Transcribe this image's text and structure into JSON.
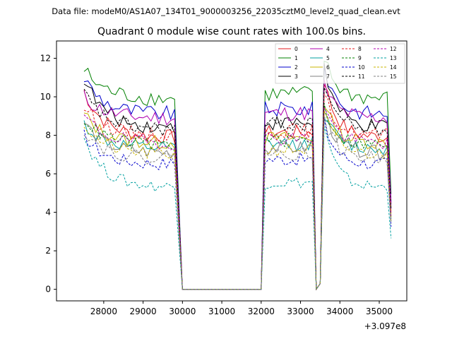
{
  "header": {
    "data_file": "Data file: modeM0/AS1A07_134T01_9000003256_22035cztM0_level2_quad_clean.evt"
  },
  "chart_data": {
    "type": "line",
    "title": "Quadrant 0 module wise count rates with 100.0s bins.",
    "xlabel": "",
    "ylabel": "",
    "x_offset_label": "+3.097e8",
    "x_offset": 309700000,
    "xlim": [
      26800,
      35700
    ],
    "ylim": [
      -0.6,
      12.9
    ],
    "x_ticks": [
      28000,
      29000,
      30000,
      31000,
      32000,
      33000,
      34000,
      35000
    ],
    "x_tick_labels": [
      "28000",
      "29000",
      "30000",
      "31000",
      "32000",
      "33000",
      "34000",
      "35000"
    ],
    "y_ticks": [
      0,
      2,
      4,
      6,
      8,
      10,
      12
    ],
    "y_tick_labels": [
      "0",
      "2",
      "4",
      "6",
      "8",
      "10",
      "12"
    ],
    "grid": false,
    "legend_position": "top-right",
    "segments": {
      "seg1_x_start": 27500,
      "seg1_x_end": 29800,
      "drop_x": 30000,
      "flat_x_end": 32000,
      "seg2_x_start": 32100,
      "seg2_x_end": 33300,
      "dip_x": [
        33400,
        33500
      ],
      "seg3_x_start": 33600,
      "seg3_x_end": 35200,
      "end_x": 35300
    },
    "series": [
      {
        "name": "0",
        "color": "#e41a1c",
        "dashed": false,
        "level": 7.9,
        "start": 10.3
      },
      {
        "name": "1",
        "color": "#008000",
        "dashed": false,
        "level": 9.9,
        "start": 11.4
      },
      {
        "name": "2",
        "color": "#0000cc",
        "dashed": false,
        "level": 9.1,
        "start": 11.0
      },
      {
        "name": "3",
        "color": "#000000",
        "dashed": false,
        "level": 8.4,
        "start": 11.0
      },
      {
        "name": "4",
        "color": "#b000b0",
        "dashed": false,
        "level": 8.9,
        "start": 10.0
      },
      {
        "name": "5",
        "color": "#00a0a0",
        "dashed": false,
        "level": 7.3,
        "start": 8.6
      },
      {
        "name": "6",
        "color": "#c8b400",
        "dashed": false,
        "level": 7.6,
        "start": 9.1
      },
      {
        "name": "7",
        "color": "#808080",
        "dashed": false,
        "level": 7.1,
        "start": 8.7
      },
      {
        "name": "8",
        "color": "#e41a1c",
        "dashed": true,
        "level": 8.0,
        "start": 9.5
      },
      {
        "name": "9",
        "color": "#008000",
        "dashed": true,
        "level": 7.5,
        "start": 8.9
      },
      {
        "name": "10",
        "color": "#0000cc",
        "dashed": true,
        "level": 6.5,
        "start": 8.0
      },
      {
        "name": "11",
        "color": "#000000",
        "dashed": true,
        "level": 8.3,
        "start": 10.2
      },
      {
        "name": "12",
        "color": "#b000b0",
        "dashed": true,
        "level": 7.6,
        "start": 9.0
      },
      {
        "name": "13",
        "color": "#00a0a0",
        "dashed": true,
        "level": 5.3,
        "start": 7.9
      },
      {
        "name": "14",
        "color": "#c8b400",
        "dashed": true,
        "level": 7.0,
        "start": 8.6
      },
      {
        "name": "15",
        "color": "#808080",
        "dashed": true,
        "level": 6.8,
        "start": 8.3
      }
    ]
  }
}
